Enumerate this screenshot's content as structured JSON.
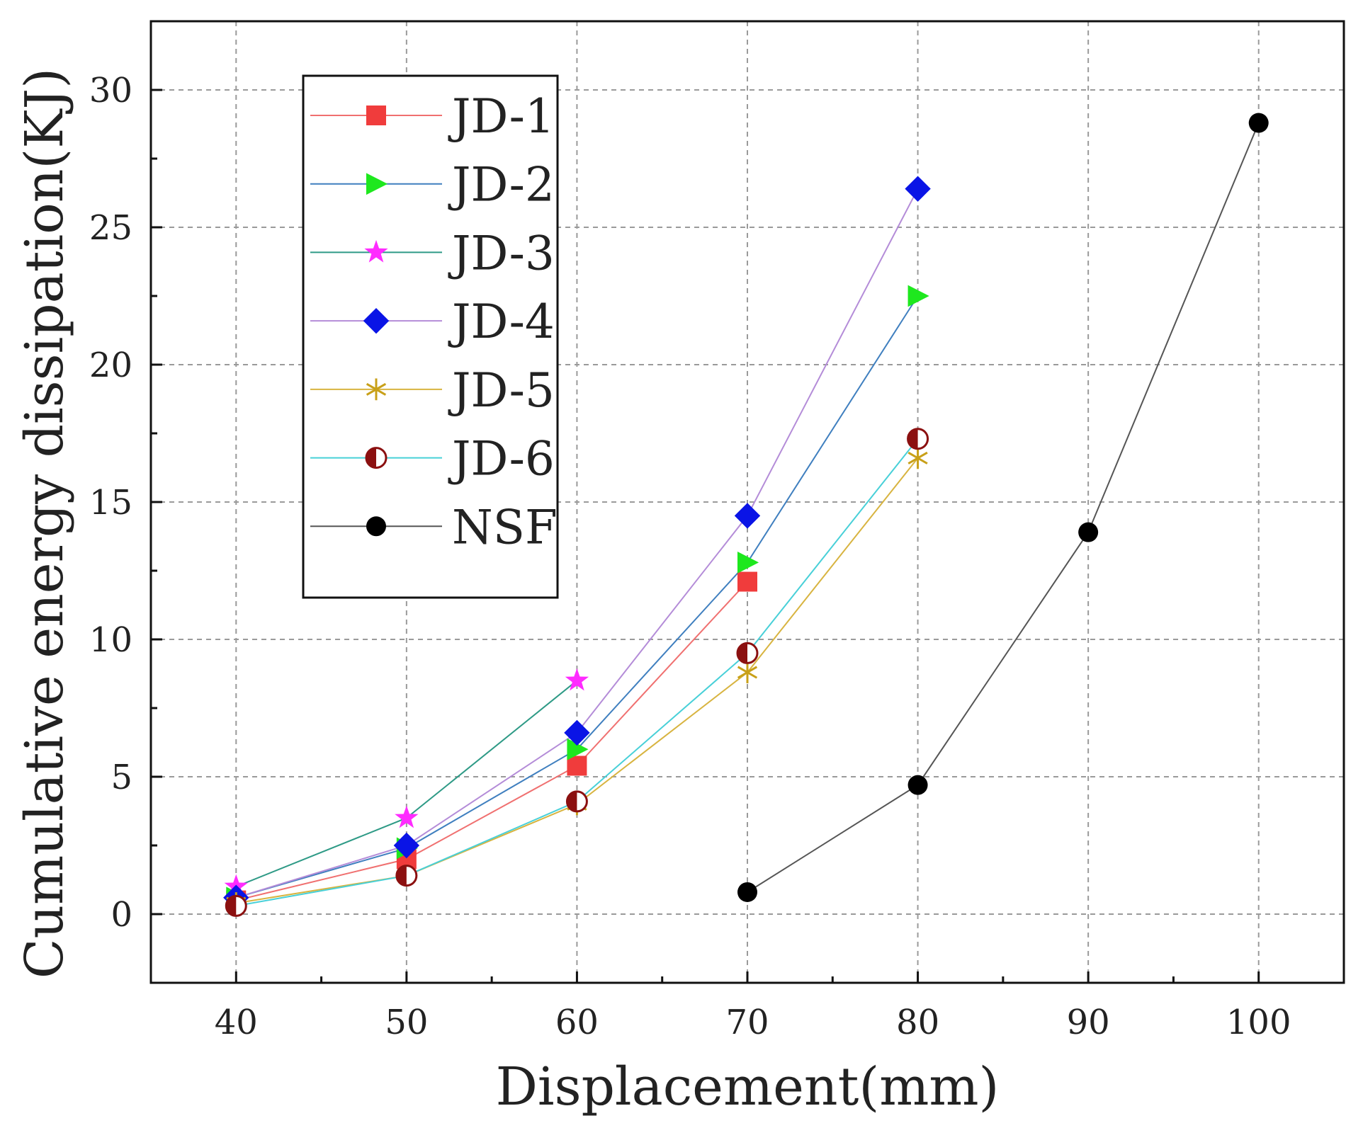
{
  "chart_data": {
    "type": "line",
    "title": "",
    "xlabel": "Displacement(mm)",
    "ylabel": "Cumulative energy dissipation(KJ)",
    "xlim": [
      35,
      105
    ],
    "ylim": [
      -2.5,
      32.5
    ],
    "xticks": [
      40,
      50,
      60,
      70,
      80,
      90,
      100
    ],
    "yticks": [
      0,
      5,
      10,
      15,
      20,
      25,
      30
    ],
    "grid": true,
    "legend_position": "top-left",
    "series": [
      {
        "name": "JD-1",
        "marker": "square",
        "color": "#f03c3c",
        "line_color": "#f07070",
        "x": [
          40,
          50,
          60,
          70
        ],
        "values": [
          0.5,
          2.0,
          5.4,
          12.1
        ]
      },
      {
        "name": "JD-2",
        "marker": "triangle-right",
        "color": "#1ee81e",
        "line_color": "#3f7fbf",
        "x": [
          40,
          50,
          60,
          70,
          80
        ],
        "values": [
          0.6,
          2.4,
          6.0,
          12.8,
          22.5
        ]
      },
      {
        "name": "JD-3",
        "marker": "star",
        "color": "#ff2bff",
        "line_color": "#2e9a86",
        "x": [
          40,
          50,
          60
        ],
        "values": [
          1.0,
          3.5,
          8.5
        ]
      },
      {
        "name": "JD-4",
        "marker": "diamond",
        "color": "#0a14e6",
        "line_color": "#b48cd8",
        "x": [
          40,
          50,
          60,
          70,
          80
        ],
        "values": [
          0.6,
          2.5,
          6.6,
          14.5,
          26.4
        ]
      },
      {
        "name": "JD-5",
        "marker": "asterisk",
        "color": "#c8a018",
        "line_color": "#d8b440",
        "x": [
          40,
          50,
          60,
          70,
          80
        ],
        "values": [
          0.4,
          1.4,
          4.0,
          8.8,
          16.6
        ]
      },
      {
        "name": "JD-6",
        "marker": "half-circle",
        "color": "#8b1010",
        "line_color": "#48d0d8",
        "x": [
          40,
          50,
          60,
          70,
          80
        ],
        "values": [
          0.3,
          1.4,
          4.1,
          9.5,
          17.3
        ]
      },
      {
        "name": "NSF",
        "marker": "circle",
        "color": "#000000",
        "line_color": "#555555",
        "x": [
          70,
          80,
          90,
          100
        ],
        "values": [
          0.8,
          4.7,
          13.9,
          28.8
        ]
      }
    ]
  }
}
